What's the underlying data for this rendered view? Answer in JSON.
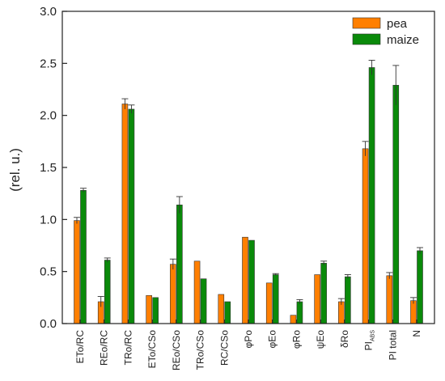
{
  "chart_data": {
    "type": "bar",
    "ylabel": "(rel. u.)",
    "ylim": [
      0,
      3.0
    ],
    "yticks": [
      0.0,
      0.5,
      1.0,
      1.5,
      2.0,
      2.5,
      3.0
    ],
    "ytick_labels": [
      "0.0",
      "0.5",
      "1.0",
      "1.5",
      "2.0",
      "2.5",
      "3.0"
    ],
    "categories": [
      "ETo/RC",
      "REo/RC",
      "TRo/RC",
      "ETo/CSo",
      "REo/CSo",
      "TRo/CSo",
      "RC/CSo",
      "φPo",
      "φEo",
      "φRo",
      "ψEo",
      "δRo",
      "PI_ABS",
      "PI total",
      "N"
    ],
    "category_labels": [
      {
        "main": "ETo/RC",
        "sub": ""
      },
      {
        "main": "REo/RC",
        "sub": ""
      },
      {
        "main": "TRo/RC",
        "sub": ""
      },
      {
        "main": "ETo/CSo",
        "sub": ""
      },
      {
        "main": "REo/CSo",
        "sub": ""
      },
      {
        "main": "TRo/CSo",
        "sub": ""
      },
      {
        "main": "RC/CSo",
        "sub": ""
      },
      {
        "main": "φPo",
        "sub": ""
      },
      {
        "main": "φEo",
        "sub": ""
      },
      {
        "main": "φRo",
        "sub": ""
      },
      {
        "main": "ψEo",
        "sub": ""
      },
      {
        "main": "δRo",
        "sub": ""
      },
      {
        "main": "PI",
        "sub": "ABS"
      },
      {
        "main": "PI total",
        "sub": ""
      },
      {
        "main": "N",
        "sub": ""
      }
    ],
    "series": [
      {
        "name": "pea",
        "color": "#ff7f00",
        "values": [
          0.99,
          0.21,
          2.11,
          0.27,
          0.57,
          0.6,
          0.28,
          0.83,
          0.39,
          0.08,
          0.47,
          0.21,
          1.68,
          0.46,
          0.22
        ],
        "errors": [
          0.03,
          0.05,
          0.05,
          0.0,
          0.05,
          0.0,
          0.0,
          0.0,
          0.0,
          0.0,
          0.0,
          0.03,
          0.07,
          0.03,
          0.03
        ]
      },
      {
        "name": "maize",
        "color": "#0a8a0a",
        "values": [
          1.28,
          0.61,
          2.06,
          0.25,
          1.14,
          0.43,
          0.21,
          0.8,
          0.47,
          0.21,
          0.58,
          0.45,
          2.46,
          2.29,
          0.7
        ],
        "errors": [
          0.02,
          0.02,
          0.04,
          0.0,
          0.08,
          0.0,
          0.0,
          0.0,
          0.01,
          0.02,
          0.02,
          0.02,
          0.07,
          0.19,
          0.03
        ]
      }
    ],
    "legend_position": "top-right",
    "grid": false
  }
}
